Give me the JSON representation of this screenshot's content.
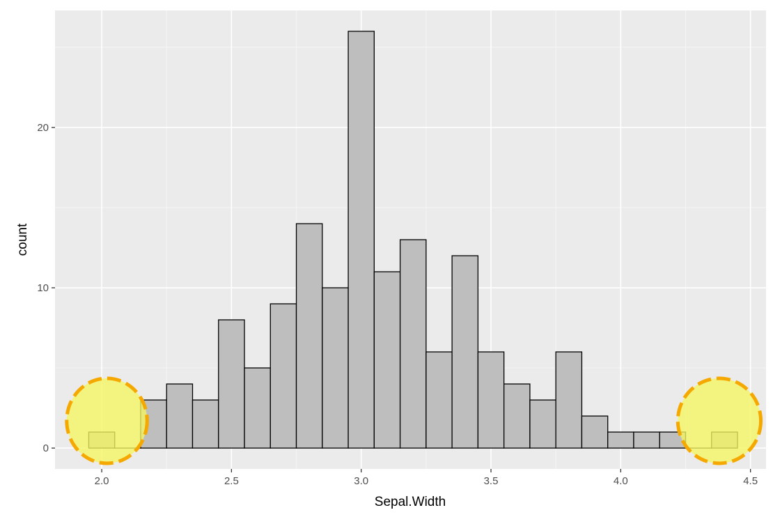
{
  "chart_data": {
    "type": "bar",
    "title": "",
    "xlabel": "Sepal.Width",
    "ylabel": "count",
    "xlim": [
      1.82,
      4.56
    ],
    "ylim": [
      -1.3,
      27.3
    ],
    "x_ticks": [
      {
        "value": 2.0,
        "label": "2.0"
      },
      {
        "value": 2.5,
        "label": "2.5"
      },
      {
        "value": 3.0,
        "label": "3.0"
      },
      {
        "value": 3.5,
        "label": "3.5"
      },
      {
        "value": 4.0,
        "label": "4.0"
      },
      {
        "value": 4.5,
        "label": "4.5"
      }
    ],
    "y_ticks": [
      {
        "value": 0,
        "label": "0"
      },
      {
        "value": 10,
        "label": "10"
      },
      {
        "value": 20,
        "label": "20"
      }
    ],
    "bin_width": 0.1,
    "bin_centers": [
      2.0,
      2.1,
      2.2,
      2.3,
      2.4,
      2.5,
      2.6,
      2.7,
      2.8,
      2.9,
      3.0,
      3.1,
      3.2,
      3.3,
      3.4,
      3.5,
      3.6,
      3.7,
      3.8,
      3.9,
      4.0,
      4.1,
      4.2,
      4.3,
      4.4
    ],
    "values": [
      1,
      0,
      3,
      4,
      3,
      8,
      5,
      9,
      14,
      10,
      26,
      11,
      13,
      6,
      12,
      6,
      4,
      3,
      6,
      2,
      1,
      1,
      1,
      0,
      1
    ],
    "grid": true,
    "colors": {
      "panel_background": "#ebebeb",
      "grid_major": "#ffffff",
      "grid_minor": "#f5f5f5",
      "bar_fill": "#bebebe",
      "bar_stroke": "#000000",
      "highlight_fill": "#f5f560",
      "highlight_stroke": "#f5a800"
    },
    "highlights": [
      {
        "x_center": 2.02,
        "y_center": 1.7,
        "radius_x": 0.155,
        "radius_y": 2.65
      },
      {
        "x_center": 4.38,
        "y_center": 1.7,
        "radius_x": 0.16,
        "radius_y": 2.65
      }
    ]
  }
}
